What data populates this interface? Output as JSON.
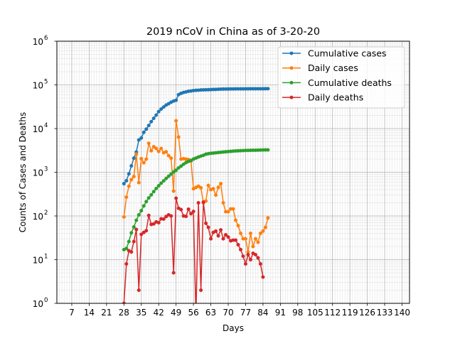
{
  "chart_data": {
    "type": "line",
    "title": "2019 nCoV in China as of 3-20-20",
    "xlabel": "Days",
    "ylabel": "Counts of Cases and Deaths",
    "xlim": [
      1,
      143
    ],
    "ylim": [
      1,
      1000000
    ],
    "yscale": "log",
    "grid": "major-and-minor",
    "legend_position": "top-right",
    "x_ticks": [
      7,
      14,
      21,
      28,
      35,
      42,
      49,
      56,
      63,
      70,
      77,
      84,
      91,
      98,
      105,
      112,
      119,
      126,
      133,
      140
    ],
    "x_tick_labels": [
      "7",
      "14",
      "21",
      "28",
      "35",
      "42",
      "49",
      "56",
      "63",
      "70",
      "77",
      "84",
      "91",
      "98",
      "105",
      "112",
      "119",
      "126",
      "133",
      "140"
    ],
    "y_ticks": [
      {
        "value": 1,
        "base": "10",
        "exp": "0"
      },
      {
        "value": 10,
        "base": "10",
        "exp": "1"
      },
      {
        "value": 100,
        "base": "10",
        "exp": "2"
      },
      {
        "value": 1000,
        "base": "10",
        "exp": "3"
      },
      {
        "value": 10000,
        "base": "10",
        "exp": "4"
      },
      {
        "value": 100000,
        "base": "10",
        "exp": "5"
      },
      {
        "value": 1000000,
        "base": "10",
        "exp": "6"
      }
    ],
    "series": [
      {
        "name": "Cumulative cases",
        "color": "#1f77b4",
        "x": [
          28,
          29,
          30,
          31,
          32,
          33,
          34,
          35,
          36,
          37,
          38,
          39,
          40,
          41,
          42,
          43,
          44,
          45,
          46,
          47,
          48,
          49,
          50,
          51,
          52,
          53,
          54,
          55,
          56,
          57,
          58,
          59,
          60,
          61,
          62,
          63,
          64,
          65,
          66,
          67,
          68,
          69,
          70,
          71,
          72,
          73,
          74,
          75,
          76,
          77,
          78,
          79,
          80,
          81,
          82,
          83,
          84,
          85,
          86
        ],
        "y": [
          548,
          640,
          920,
          1400,
          2100,
          2900,
          5500,
          6100,
          8200,
          9700,
          11800,
          14400,
          17200,
          20400,
          24500,
          28000,
          31200,
          34600,
          37100,
          40200,
          42700,
          44600,
          59800,
          64000,
          67100,
          69000,
          71300,
          72400,
          74200,
          75000,
          75700,
          76700,
          77000,
          77200,
          77700,
          78000,
          78600,
          78900,
          79400,
          80000,
          80150,
          80300,
          80450,
          80700,
          80800,
          80900,
          81000,
          81050,
          81100,
          81150,
          81200,
          81300,
          81350,
          81400,
          81450,
          81500,
          81550,
          81600,
          81700
        ]
      },
      {
        "name": "Daily cases",
        "color": "#ff7f0e",
        "x": [
          28,
          29,
          30,
          31,
          32,
          33,
          34,
          35,
          36,
          37,
          38,
          39,
          40,
          41,
          42,
          43,
          44,
          45,
          46,
          47,
          48,
          49,
          50,
          51,
          52,
          53,
          54,
          55,
          56,
          57,
          58,
          59,
          60,
          61,
          62,
          63,
          64,
          65,
          66,
          67,
          68,
          69,
          70,
          71,
          72,
          73,
          74,
          75,
          76,
          77,
          78,
          79,
          80,
          81,
          82,
          83,
          84,
          85,
          86
        ],
        "y": [
          95,
          270,
          480,
          680,
          800,
          2600,
          580,
          2050,
          1650,
          2000,
          4600,
          3100,
          3850,
          3500,
          3000,
          3500,
          2800,
          2950,
          2400,
          2100,
          370,
          15100,
          6400,
          2000,
          2050,
          2000,
          1950,
          1800,
          420,
          450,
          480,
          440,
          200,
          220,
          500,
          400,
          420,
          300,
          450,
          550,
          200,
          125,
          125,
          145,
          145,
          80,
          60,
          40,
          30,
          30,
          15,
          40,
          20,
          30,
          25,
          40,
          45,
          55,
          90
        ]
      },
      {
        "name": "Cumulative deaths",
        "color": "#2ca02c",
        "x": [
          28,
          29,
          30,
          31,
          32,
          33,
          34,
          35,
          36,
          37,
          38,
          39,
          40,
          41,
          42,
          43,
          44,
          45,
          46,
          47,
          48,
          49,
          50,
          51,
          52,
          53,
          54,
          55,
          56,
          57,
          58,
          59,
          60,
          61,
          62,
          63,
          64,
          65,
          66,
          67,
          68,
          69,
          70,
          71,
          72,
          73,
          74,
          75,
          76,
          77,
          78,
          79,
          80,
          81,
          82,
          83,
          84,
          85,
          86
        ],
        "y": [
          17,
          18,
          26,
          41,
          56,
          80,
          106,
          132,
          170,
          213,
          259,
          304,
          361,
          425,
          490,
          563,
          636,
          722,
          811,
          908,
          1016,
          1113,
          1259,
          1380,
          1523,
          1665,
          1770,
          1868,
          2004,
          2118,
          2236,
          2345,
          2442,
          2592,
          2663,
          2715,
          2744,
          2788,
          2835,
          2870,
          2912,
          2943,
          2981,
          3012,
          3042,
          3070,
          3097,
          3119,
          3136,
          3158,
          3169,
          3176,
          3189,
          3199,
          3213,
          3226,
          3237,
          3245,
          3249
        ]
      },
      {
        "name": "Daily deaths",
        "color": "#d62728",
        "x": [
          28,
          29,
          30,
          31,
          32,
          33,
          34,
          35,
          36,
          37,
          38,
          39,
          40,
          41,
          42,
          43,
          44,
          45,
          46,
          47,
          48,
          49,
          50,
          51,
          52,
          53,
          54,
          55,
          56,
          57,
          58,
          59,
          60,
          61,
          62,
          63,
          64,
          65,
          66,
          67,
          68,
          69,
          70,
          71,
          72,
          73,
          74,
          75,
          76,
          77,
          78,
          79,
          80,
          81,
          82,
          83,
          84,
          85,
          86
        ],
        "y": [
          1,
          8,
          16,
          15,
          26,
          49,
          2,
          38,
          42,
          46,
          103,
          64,
          66,
          73,
          70,
          86,
          85,
          97,
          106,
          100,
          5,
          255,
          150,
          140,
          100,
          98,
          143,
          113,
          127,
          0.5,
          200,
          2,
          208,
          68,
          55,
          30,
          42,
          45,
          35,
          48,
          30,
          37,
          33,
          27,
          28,
          28,
          22,
          17,
          12,
          8,
          13,
          10,
          14,
          13,
          11,
          8,
          4,
          null,
          null
        ]
      }
    ]
  }
}
